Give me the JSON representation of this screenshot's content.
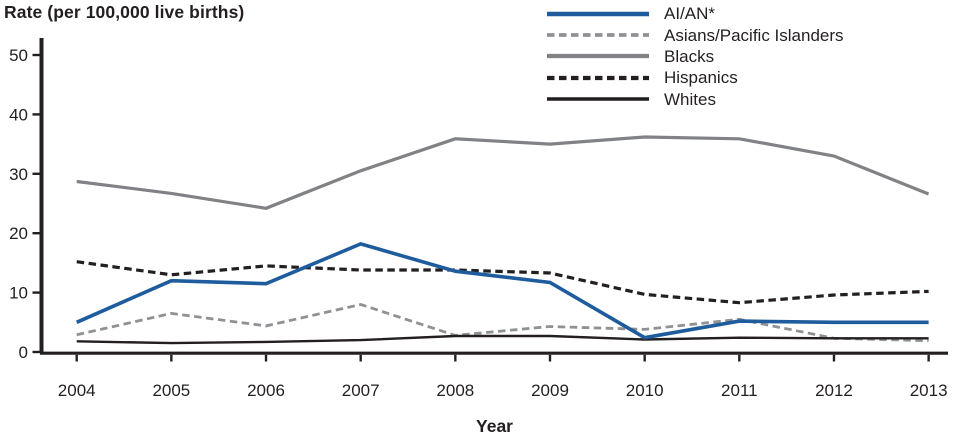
{
  "chart_data": {
    "type": "line",
    "title": "Rate (per 100,000 live births)",
    "xlabel": "Year",
    "ylabel": "Rate (per 100,000 live births)",
    "categories": [
      "2004",
      "2005",
      "2006",
      "2007",
      "2008",
      "2009",
      "2010",
      "2011",
      "2012",
      "2013"
    ],
    "y_ticks": [
      0,
      10,
      20,
      30,
      40,
      50
    ],
    "ylim": [
      0,
      50
    ],
    "grid": false,
    "legend_position": "top-right",
    "axis_color": "#231f20",
    "text_color": "#231f20",
    "series": [
      {
        "name": "AI/AN*",
        "color": "#1e5c9e",
        "dash": "solid",
        "width": 3.6,
        "values": [
          5.0,
          12.0,
          11.5,
          18.2,
          13.6,
          11.7,
          2.4,
          5.2,
          5.0,
          5.0
        ]
      },
      {
        "name": "Asians/Pacific Islanders",
        "color": "#8f9194",
        "dash": "dashed",
        "width": 2.8,
        "values": [
          2.9,
          6.5,
          4.4,
          8.0,
          2.8,
          4.3,
          3.8,
          5.5,
          2.3,
          1.9
        ]
      },
      {
        "name": "Blacks",
        "color": "#808285",
        "dash": "solid",
        "width": 3.2,
        "values": [
          28.7,
          26.7,
          24.2,
          30.5,
          35.9,
          35.0,
          36.2,
          35.9,
          33.0,
          26.6
        ]
      },
      {
        "name": "Hispanics",
        "color": "#231f20",
        "dash": "dashed",
        "width": 3.2,
        "values": [
          15.2,
          13.0,
          14.5,
          13.8,
          13.8,
          13.3,
          9.7,
          8.3,
          9.6,
          10.2
        ]
      },
      {
        "name": "Whites",
        "color": "#231f20",
        "dash": "solid",
        "width": 2.4,
        "values": [
          1.8,
          1.5,
          1.7,
          2.0,
          2.7,
          2.7,
          2.1,
          2.4,
          2.3,
          2.3
        ]
      }
    ]
  }
}
